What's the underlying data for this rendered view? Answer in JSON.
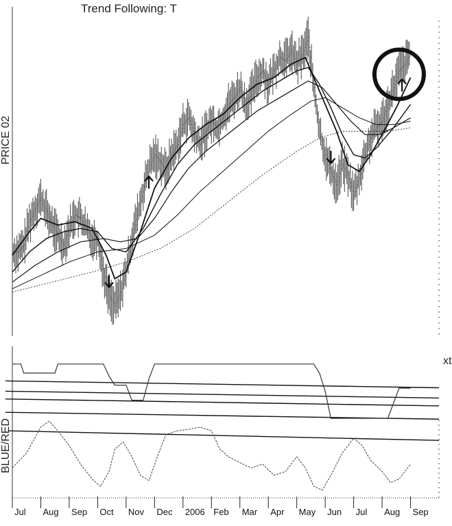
{
  "chart_data": {
    "type": "line",
    "title": "Trend Following: T",
    "left_label": "PRICE   02",
    "left_label_lower": "BLUE/RED",
    "right_label": "xt",
    "x_ticks": [
      "Jul",
      "Aug",
      "Sep",
      "Oct",
      "Nov",
      "Dec",
      "2006",
      "Feb",
      "Mar",
      "Apr",
      "May",
      "Jun",
      "Jul",
      "Aug",
      "Sep"
    ],
    "price_panel": {
      "price_bars_close": [
        [
          0,
          0.56
        ],
        [
          0.2,
          0.56
        ],
        [
          0.4,
          0.58
        ],
        [
          0.6,
          0.65
        ],
        [
          0.8,
          0.69
        ],
        [
          1.0,
          0.72
        ],
        [
          1.2,
          0.68
        ],
        [
          1.4,
          0.64
        ],
        [
          1.6,
          0.61
        ],
        [
          1.8,
          0.58
        ],
        [
          2.0,
          0.63
        ],
        [
          2.2,
          0.67
        ],
        [
          2.4,
          0.66
        ],
        [
          2.6,
          0.63
        ],
        [
          2.8,
          0.6
        ],
        [
          3.0,
          0.6
        ],
        [
          3.2,
          0.5
        ],
        [
          3.4,
          0.43
        ],
        [
          3.6,
          0.4
        ],
        [
          3.8,
          0.44
        ],
        [
          4.0,
          0.5
        ],
        [
          4.2,
          0.6
        ],
        [
          4.4,
          0.67
        ],
        [
          4.6,
          0.74
        ],
        [
          4.8,
          0.81
        ],
        [
          5.0,
          0.85
        ],
        [
          5.2,
          0.83
        ],
        [
          5.4,
          0.8
        ],
        [
          5.6,
          0.85
        ],
        [
          5.8,
          0.88
        ],
        [
          6.0,
          0.94
        ],
        [
          6.2,
          0.96
        ],
        [
          6.4,
          0.91
        ],
        [
          6.6,
          0.88
        ],
        [
          6.8,
          0.92
        ],
        [
          7.0,
          0.95
        ],
        [
          7.2,
          0.93
        ],
        [
          7.4,
          0.96
        ],
        [
          7.6,
          1.0
        ],
        [
          7.8,
          1.02
        ],
        [
          8.0,
          1.05
        ],
        [
          8.2,
          1.0
        ],
        [
          8.4,
          1.03
        ],
        [
          8.6,
          1.08
        ],
        [
          8.8,
          1.1
        ],
        [
          9.0,
          1.06
        ],
        [
          9.2,
          1.1
        ],
        [
          9.4,
          1.14
        ],
        [
          9.6,
          1.13
        ],
        [
          9.8,
          1.16
        ],
        [
          10.0,
          1.12
        ],
        [
          10.2,
          1.15
        ],
        [
          10.4,
          1.2
        ],
        [
          10.6,
          1.05
        ],
        [
          10.8,
          0.92
        ],
        [
          11.0,
          0.85
        ],
        [
          11.2,
          0.8
        ],
        [
          11.4,
          0.76
        ],
        [
          11.6,
          0.82
        ],
        [
          11.8,
          0.79
        ],
        [
          12.0,
          0.73
        ],
        [
          12.2,
          0.78
        ],
        [
          12.4,
          0.85
        ],
        [
          12.6,
          0.9
        ],
        [
          12.8,
          0.93
        ],
        [
          13.0,
          0.95
        ],
        [
          13.2,
          1.0
        ],
        [
          13.4,
          1.05
        ],
        [
          13.6,
          1.1
        ],
        [
          13.8,
          1.12
        ],
        [
          14.0,
          1.15
        ]
      ],
      "moving_averages": [
        {
          "values": [
            [
              0,
              0.55
            ],
            [
              0.6,
              0.62
            ],
            [
              1.0,
              0.66
            ],
            [
              1.6,
              0.64
            ],
            [
              2.2,
              0.65
            ],
            [
              2.8,
              0.63
            ],
            [
              3.3,
              0.55
            ],
            [
              3.6,
              0.48
            ],
            [
              4.0,
              0.5
            ],
            [
              4.5,
              0.62
            ],
            [
              5.0,
              0.75
            ],
            [
              5.6,
              0.84
            ],
            [
              6.2,
              0.9
            ],
            [
              6.8,
              0.94
            ],
            [
              7.4,
              0.97
            ],
            [
              8.0,
              1.02
            ],
            [
              8.6,
              1.06
            ],
            [
              9.2,
              1.08
            ],
            [
              9.8,
              1.12
            ],
            [
              10.3,
              1.14
            ],
            [
              10.6,
              1.08
            ],
            [
              11.0,
              1.0
            ],
            [
              11.4,
              0.92
            ],
            [
              11.8,
              0.82
            ],
            [
              12.2,
              0.8
            ],
            [
              12.6,
              0.85
            ],
            [
              13.0,
              0.91
            ],
            [
              13.5,
              0.99
            ],
            [
              14.0,
              1.08
            ]
          ]
        },
        {
          "values": [
            [
              0,
              0.5
            ],
            [
              0.6,
              0.56
            ],
            [
              1.2,
              0.6
            ],
            [
              1.8,
              0.62
            ],
            [
              2.4,
              0.63
            ],
            [
              3.0,
              0.62
            ],
            [
              3.5,
              0.57
            ],
            [
              4.0,
              0.56
            ],
            [
              4.6,
              0.63
            ],
            [
              5.2,
              0.73
            ],
            [
              5.8,
              0.82
            ],
            [
              6.4,
              0.88
            ],
            [
              7.0,
              0.92
            ],
            [
              7.6,
              0.96
            ],
            [
              8.2,
              1.0
            ],
            [
              8.8,
              1.04
            ],
            [
              9.4,
              1.07
            ],
            [
              10.0,
              1.1
            ],
            [
              10.4,
              1.11
            ],
            [
              10.8,
              1.06
            ],
            [
              11.2,
              0.99
            ],
            [
              11.6,
              0.91
            ],
            [
              12.0,
              0.85
            ],
            [
              12.4,
              0.84
            ],
            [
              12.8,
              0.87
            ],
            [
              13.4,
              0.93
            ],
            [
              14.0,
              1.0
            ]
          ]
        },
        {
          "values": [
            [
              0,
              0.47
            ],
            [
              0.8,
              0.52
            ],
            [
              1.6,
              0.56
            ],
            [
              2.4,
              0.59
            ],
            [
              3.2,
              0.6
            ],
            [
              3.8,
              0.59
            ],
            [
              4.4,
              0.6
            ],
            [
              5.0,
              0.66
            ],
            [
              5.6,
              0.74
            ],
            [
              6.2,
              0.81
            ],
            [
              6.8,
              0.86
            ],
            [
              7.4,
              0.9
            ],
            [
              8.0,
              0.94
            ],
            [
              8.6,
              0.98
            ],
            [
              9.2,
              1.01
            ],
            [
              9.8,
              1.04
            ],
            [
              10.4,
              1.07
            ],
            [
              10.9,
              1.05
            ],
            [
              11.4,
              1.0
            ],
            [
              11.9,
              0.95
            ],
            [
              12.4,
              0.91
            ],
            [
              12.9,
              0.91
            ],
            [
              13.4,
              0.93
            ],
            [
              14.0,
              0.96
            ]
          ]
        },
        {
          "values": [
            [
              0,
              0.45
            ],
            [
              1.0,
              0.49
            ],
            [
              2.0,
              0.53
            ],
            [
              3.0,
              0.56
            ],
            [
              4.0,
              0.57
            ],
            [
              5.0,
              0.61
            ],
            [
              5.8,
              0.67
            ],
            [
              6.6,
              0.74
            ],
            [
              7.4,
              0.8
            ],
            [
              8.2,
              0.86
            ],
            [
              9.0,
              0.92
            ],
            [
              9.8,
              0.97
            ],
            [
              10.5,
              1.01
            ],
            [
              11.0,
              1.02
            ],
            [
              11.6,
              0.99
            ],
            [
              12.2,
              0.96
            ],
            [
              12.8,
              0.94
            ],
            [
              13.4,
              0.94
            ],
            [
              14.0,
              0.95
            ]
          ]
        },
        {
          "values": [
            [
              0,
              0.44
            ],
            [
              1.4,
              0.47
            ],
            [
              2.8,
              0.5
            ],
            [
              4.0,
              0.53
            ],
            [
              5.2,
              0.57
            ],
            [
              6.4,
              0.63
            ],
            [
              7.6,
              0.71
            ],
            [
              8.8,
              0.79
            ],
            [
              10.0,
              0.86
            ],
            [
              10.8,
              0.9
            ],
            [
              11.6,
              0.92
            ],
            [
              12.4,
              0.92
            ],
            [
              13.2,
              0.92
            ],
            [
              14.0,
              0.93
            ]
          ]
        }
      ],
      "signal_arrows": [
        {
          "x": 3.4,
          "direction": "down"
        },
        {
          "x": 4.8,
          "direction": "up"
        },
        {
          "x": 11.2,
          "direction": "down"
        },
        {
          "x": 13.7,
          "direction": "up"
        }
      ],
      "circled_x": 13.6
    },
    "step_indicator": {
      "values": [
        [
          0,
          0.9
        ],
        [
          0.3,
          0.9
        ],
        [
          0.4,
          0.75
        ],
        [
          1.5,
          0.75
        ],
        [
          1.6,
          0.9
        ],
        [
          3.2,
          0.9
        ],
        [
          3.4,
          0.7
        ],
        [
          3.6,
          0.55
        ],
        [
          4.0,
          0.55
        ],
        [
          4.2,
          0.3
        ],
        [
          4.6,
          0.3
        ],
        [
          4.8,
          0.65
        ],
        [
          5.0,
          0.9
        ],
        [
          10.6,
          0.9
        ],
        [
          10.8,
          0.75
        ],
        [
          11.0,
          0.45
        ],
        [
          11.2,
          0.0
        ],
        [
          13.2,
          0.0
        ],
        [
          13.4,
          0.25
        ],
        [
          13.6,
          0.5
        ],
        [
          14.0,
          0.5
        ]
      ],
      "reference_lines": [
        0.62,
        0.45,
        0.32,
        0.1
      ]
    },
    "oscillator": {
      "values": [
        [
          0,
          0.35
        ],
        [
          0.5,
          0.55
        ],
        [
          1.0,
          0.9
        ],
        [
          1.3,
          0.98
        ],
        [
          1.6,
          0.85
        ],
        [
          2.0,
          0.65
        ],
        [
          2.4,
          0.4
        ],
        [
          2.8,
          0.2
        ],
        [
          3.1,
          0.1
        ],
        [
          3.4,
          0.3
        ],
        [
          3.6,
          0.6
        ],
        [
          3.9,
          0.7
        ],
        [
          4.2,
          0.5
        ],
        [
          4.5,
          0.25
        ],
        [
          4.8,
          0.18
        ],
        [
          5.1,
          0.5
        ],
        [
          5.4,
          0.8
        ],
        [
          5.8,
          0.85
        ],
        [
          6.2,
          0.87
        ],
        [
          6.6,
          0.9
        ],
        [
          7.0,
          0.85
        ],
        [
          7.3,
          0.6
        ],
        [
          7.6,
          0.5
        ],
        [
          8.0,
          0.42
        ],
        [
          8.4,
          0.35
        ],
        [
          8.8,
          0.4
        ],
        [
          9.2,
          0.25
        ],
        [
          9.6,
          0.3
        ],
        [
          10.0,
          0.5
        ],
        [
          10.3,
          0.35
        ],
        [
          10.6,
          0.1
        ],
        [
          10.9,
          0.05
        ],
        [
          11.2,
          0.25
        ],
        [
          11.6,
          0.55
        ],
        [
          12.0,
          0.75
        ],
        [
          12.3,
          0.65
        ],
        [
          12.6,
          0.45
        ],
        [
          13.0,
          0.3
        ],
        [
          13.3,
          0.15
        ],
        [
          13.6,
          0.2
        ],
        [
          13.9,
          0.35
        ],
        [
          14.0,
          0.4
        ]
      ],
      "reference_line": 0.85
    }
  }
}
